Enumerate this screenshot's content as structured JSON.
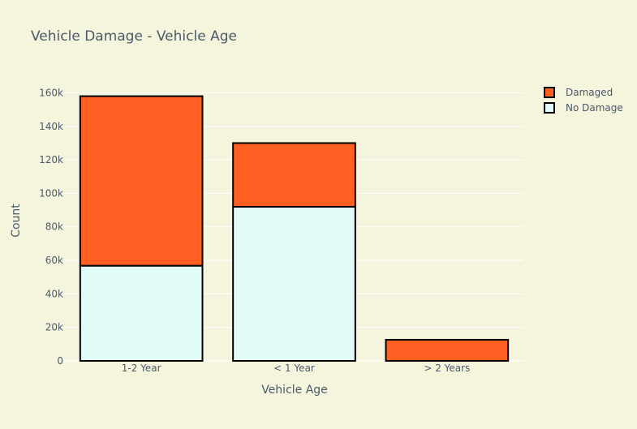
{
  "chart_data": {
    "type": "bar",
    "barmode": "stack",
    "title": "Vehicle Damage - Vehicle Age",
    "xlabel": "Vehicle Age",
    "ylabel": "Count",
    "categories": [
      "1-2 Year",
      "< 1 Year",
      "> 2 Years"
    ],
    "series": [
      {
        "name": "No Damage",
        "values": [
          56800,
          92000,
          0
        ],
        "color": "#e1fbf8"
      },
      {
        "name": "Damaged",
        "values": [
          101200,
          38000,
          12600
        ],
        "color": "#ff5f21"
      }
    ],
    "ylim": [
      0,
      167000
    ],
    "yticks": [
      0,
      20000,
      40000,
      60000,
      80000,
      100000,
      120000,
      140000,
      160000
    ],
    "ytick_labels": [
      "0",
      "20k",
      "40k",
      "60k",
      "80k",
      "100k",
      "120k",
      "140k",
      "160k"
    ],
    "grid": true,
    "legend_position": "top-right",
    "legend": [
      "Damaged",
      "No Damage"
    ],
    "background_color": "#f5f4dc",
    "bar_outline_color": "#000000"
  }
}
